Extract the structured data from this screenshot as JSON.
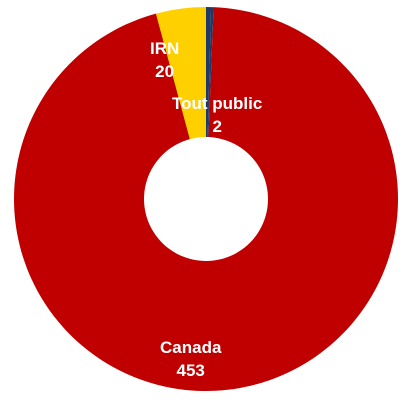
{
  "chart_data": {
    "type": "pie",
    "donut": true,
    "title": "",
    "categories": [
      "Canada",
      "IRN",
      "Tout public",
      ""
    ],
    "values": [
      453,
      20,
      2,
      1
    ],
    "colors": [
      "#c00000",
      "#ffd000",
      "#1f3864",
      "#1f3864"
    ],
    "labels": [
      {
        "name": "Canada",
        "value": "453"
      },
      {
        "name": "IRN",
        "value": "20"
      },
      {
        "name": "Tout public",
        "value": "2"
      }
    ]
  }
}
